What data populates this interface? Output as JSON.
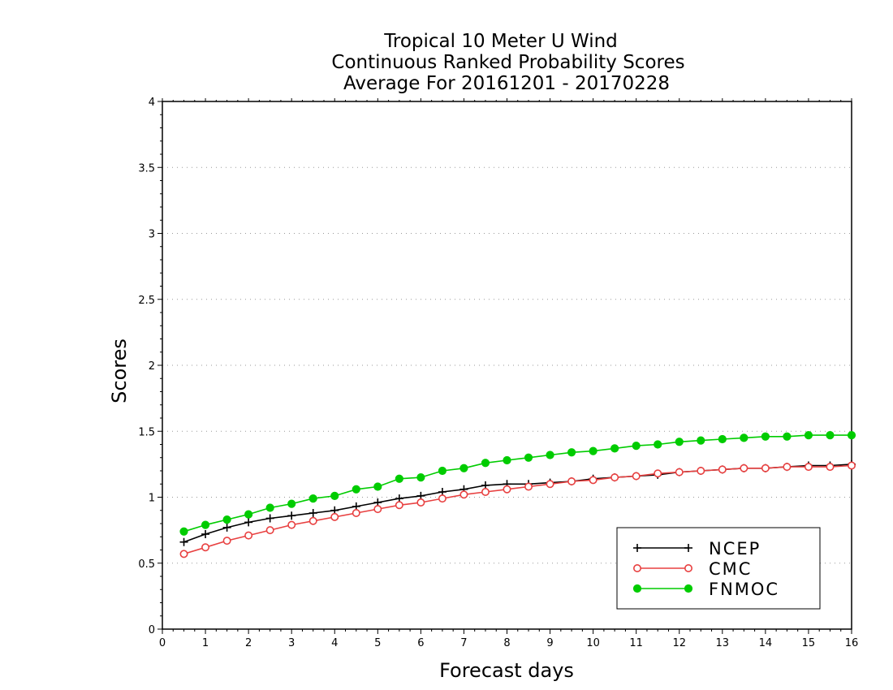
{
  "chart_data": {
    "type": "line",
    "title": [
      "Tropical 10 Meter U Wind",
      "Continuous Ranked Probability Scores",
      "Average For 20161201 - 20170228"
    ],
    "xlabel": "Forecast days",
    "ylabel": "Scores",
    "xlim": [
      0,
      16
    ],
    "ylim": [
      0,
      4
    ],
    "xticks": [
      "0",
      "1",
      "2",
      "3",
      "4",
      "5",
      "6",
      "7",
      "8",
      "9",
      "10",
      "11",
      "12",
      "13",
      "14",
      "15",
      "16"
    ],
    "yticks": [
      "0",
      "0.5",
      "1",
      "1.5",
      "2",
      "2.5",
      "3",
      "3.5",
      "4"
    ],
    "grid": "horizontal dotted",
    "legend_position": "bottom-right",
    "x": [
      0.5,
      1,
      1.5,
      2,
      2.5,
      3,
      3.5,
      4,
      4.5,
      5,
      5.5,
      6,
      6.5,
      7,
      7.5,
      8,
      8.5,
      9,
      9.5,
      10,
      10.5,
      11,
      11.5,
      12,
      12.5,
      13,
      13.5,
      14,
      14.5,
      15,
      15.5,
      16
    ],
    "series": [
      {
        "name": "NCEP",
        "color": "#000000",
        "marker": "plus",
        "values": [
          0.66,
          0.72,
          0.77,
          0.81,
          0.84,
          0.86,
          0.88,
          0.9,
          0.93,
          0.96,
          0.99,
          1.01,
          1.04,
          1.06,
          1.09,
          1.1,
          1.1,
          1.11,
          1.12,
          1.14,
          1.15,
          1.16,
          1.17,
          1.19,
          1.2,
          1.21,
          1.22,
          1.22,
          1.23,
          1.24,
          1.24,
          1.25
        ]
      },
      {
        "name": "CMC",
        "color": "#e84040",
        "marker": "open-circle",
        "values": [
          0.57,
          0.62,
          0.67,
          0.71,
          0.75,
          0.79,
          0.82,
          0.85,
          0.88,
          0.91,
          0.94,
          0.96,
          0.99,
          1.02,
          1.04,
          1.06,
          1.08,
          1.1,
          1.12,
          1.13,
          1.15,
          1.16,
          1.18,
          1.19,
          1.2,
          1.21,
          1.22,
          1.22,
          1.23,
          1.23,
          1.23,
          1.24
        ]
      },
      {
        "name": "FNMOC",
        "color": "#00cc00",
        "marker": "filled-circle",
        "values": [
          0.74,
          0.79,
          0.83,
          0.87,
          0.92,
          0.95,
          0.99,
          1.01,
          1.06,
          1.08,
          1.14,
          1.15,
          1.2,
          1.22,
          1.26,
          1.28,
          1.3,
          1.32,
          1.34,
          1.35,
          1.37,
          1.39,
          1.4,
          1.42,
          1.43,
          1.44,
          1.45,
          1.46,
          1.46,
          1.47,
          1.47,
          1.47
        ]
      }
    ]
  }
}
